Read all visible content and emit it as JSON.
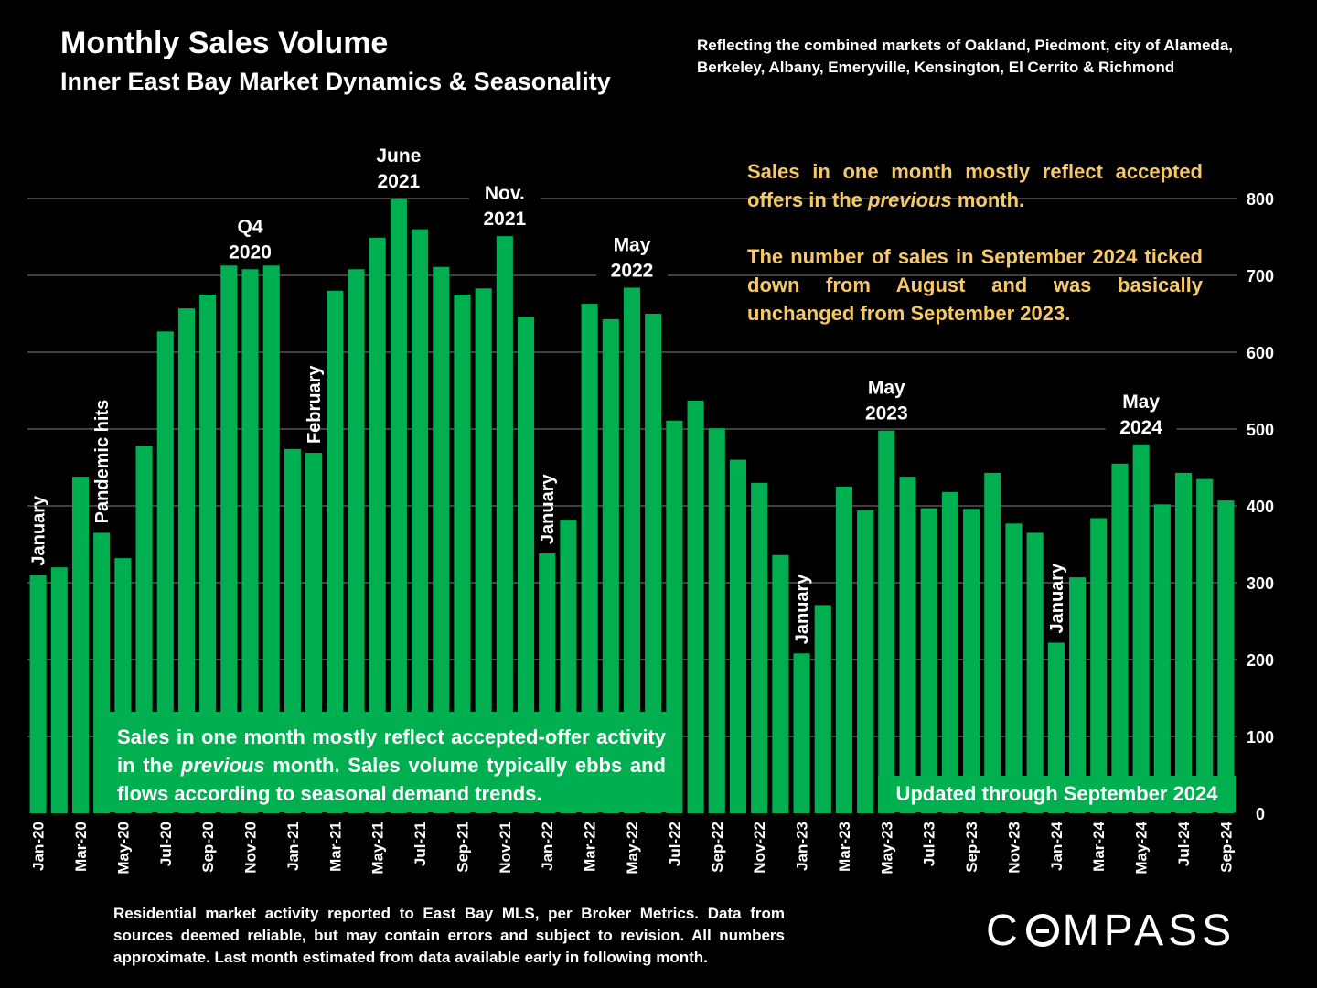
{
  "header": {
    "title": "Monthly Sales Volume",
    "subtitle": "Inner East Bay Market Dynamics & Seasonality",
    "note": "Reflecting the combined markets of Oakland, Piedmont, city of Alameda, Berkeley, Albany, Emeryville, Kensington, El Cerrito & Richmond"
  },
  "callout": {
    "p1_before": "Sales in one month mostly reflect accepted offers in the ",
    "p1_em": "previous",
    "p1_after": " month.",
    "p2": "The number of sales in September 2024 ticked down from August and was basically unchanged from September 2023."
  },
  "greenbox": {
    "before": "Sales in one month mostly reflect accepted-offer activity in the ",
    "em": "previous",
    "after": " month. Sales volume typically ebbs and flows according to seasonal demand trends."
  },
  "updated": "Updated through September 2024",
  "footer": "Residential market activity reported to East Bay MLS, per Broker Metrics. Data from sources deemed reliable, but may contain errors and subject to revision. All numbers approximate. Last month estimated from data available early in following month.",
  "logo": {
    "before": "C",
    "after": "MPASS"
  },
  "colors": {
    "bar": "#00b050",
    "callout": "#f5c86a",
    "background": "#000000",
    "gridline": "#7f7f7f"
  },
  "chart_data": {
    "type": "bar",
    "ylim": [
      0,
      800
    ],
    "yticks": [
      0,
      100,
      200,
      300,
      400,
      500,
      600,
      700,
      800
    ],
    "y_axis_side": "right",
    "grid": true,
    "categories": [
      "Jan-20",
      "Feb-20",
      "Mar-20",
      "Apr-20",
      "May-20",
      "Jun-20",
      "Jul-20",
      "Aug-20",
      "Sep-20",
      "Oct-20",
      "Nov-20",
      "Dec-20",
      "Jan-21",
      "Feb-21",
      "Mar-21",
      "Apr-21",
      "May-21",
      "Jun-21",
      "Jul-21",
      "Aug-21",
      "Sep-21",
      "Oct-21",
      "Nov-21",
      "Dec-21",
      "Jan-22",
      "Feb-22",
      "Mar-22",
      "Apr-22",
      "May-22",
      "Jun-22",
      "Jul-22",
      "Aug-22",
      "Sep-22",
      "Oct-22",
      "Nov-22",
      "Dec-22",
      "Jan-23",
      "Feb-23",
      "Mar-23",
      "Apr-23",
      "May-23",
      "Jun-23",
      "Jul-23",
      "Aug-23",
      "Sep-23",
      "Oct-23",
      "Nov-23",
      "Dec-23",
      "Jan-24",
      "Feb-24",
      "Mar-24",
      "Apr-24",
      "May-24",
      "Jun-24",
      "Jul-24",
      "Aug-24",
      "Sep-24"
    ],
    "x_tick_labels": [
      "Jan-20",
      "Mar-20",
      "May-20",
      "Jul-20",
      "Sep-20",
      "Nov-20",
      "Jan-21",
      "Mar-21",
      "May-21",
      "Jul-21",
      "Sep-21",
      "Nov-21",
      "Jan-22",
      "Mar-22",
      "May-22",
      "Jul-22",
      "Sep-22",
      "Nov-22",
      "Jan-23",
      "Mar-23",
      "May-23",
      "Jul-23",
      "Sep-23",
      "Nov-23",
      "Jan-24",
      "Mar-24",
      "May-24",
      "Jul-24",
      "Sep-24"
    ],
    "values": [
      310,
      320,
      438,
      365,
      332,
      478,
      627,
      657,
      675,
      745,
      708,
      758,
      474,
      469,
      680,
      708,
      749,
      800,
      760,
      711,
      675,
      683,
      751,
      646,
      338,
      382,
      663,
      643,
      684,
      650,
      511,
      537,
      501,
      460,
      430,
      336,
      208,
      271,
      425,
      394,
      498,
      438,
      397,
      418,
      396,
      443,
      377,
      365,
      222,
      307,
      384,
      455,
      480,
      402,
      443,
      435,
      407
    ],
    "annotations": [
      {
        "index": 0,
        "text": "January",
        "rotated": true
      },
      {
        "index": 3,
        "text": "Pandemic hits",
        "rotated": true
      },
      {
        "index": 10,
        "lines": [
          "Q4",
          "2020"
        ]
      },
      {
        "index": 13,
        "text": "February",
        "rotated": true
      },
      {
        "index": 17,
        "lines": [
          "June",
          "2021"
        ]
      },
      {
        "index": 22,
        "lines": [
          "Nov.",
          "2021"
        ]
      },
      {
        "index": 24,
        "text": "January",
        "rotated": true
      },
      {
        "index": 28,
        "lines": [
          "May",
          "2022"
        ]
      },
      {
        "index": 36,
        "text": "January",
        "rotated": true
      },
      {
        "index": 40,
        "lines": [
          "May",
          "2023"
        ]
      },
      {
        "index": 48,
        "text": "January",
        "rotated": true
      },
      {
        "index": 52,
        "lines": [
          "May",
          "2024"
        ]
      }
    ]
  }
}
